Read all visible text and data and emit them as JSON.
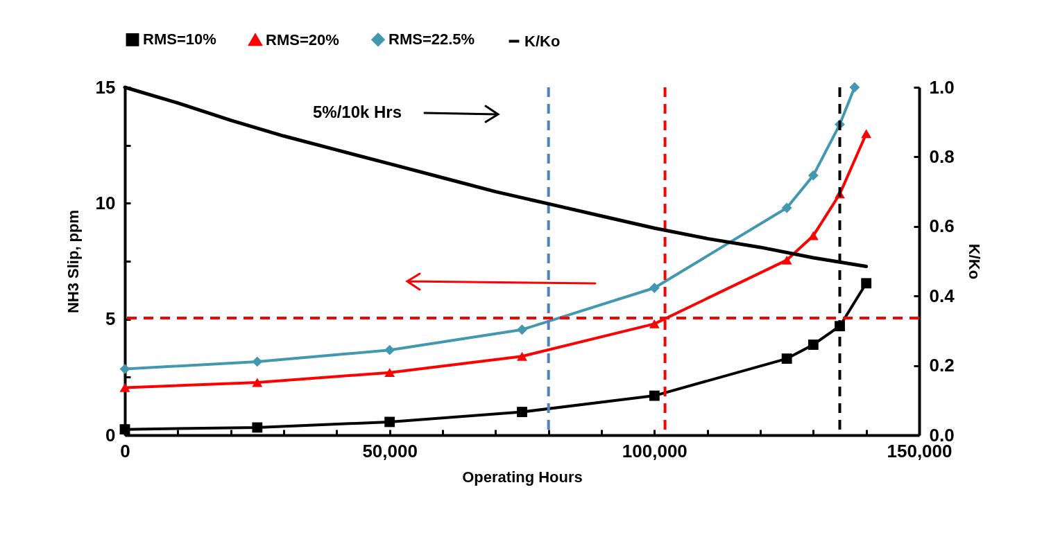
{
  "chart_data": {
    "type": "line",
    "xlabel": "Operating Hours",
    "ylabel": "NH3 Slip, ppm",
    "y2label": "K/Ko",
    "x": [
      0,
      25000,
      50000,
      75000,
      100000,
      125000,
      130000,
      135000,
      140000
    ],
    "series": [
      {
        "name": "RMS=10%",
        "color": "#000000",
        "marker": "square",
        "values": [
          0.25,
          0.33,
          0.57,
          1.0,
          1.7,
          3.3,
          3.9,
          4.7,
          6.55
        ]
      },
      {
        "name": "RMS=20%",
        "color": "#ff0000",
        "marker": "triangle",
        "values": [
          2.05,
          2.27,
          2.7,
          3.4,
          4.8,
          7.55,
          8.6,
          10.4,
          13.0
        ]
      },
      {
        "name": "RMS=22.5%",
        "color": "#4198af",
        "marker": "diamond",
        "x": [
          0,
          25000,
          50000,
          75000,
          100000,
          125000,
          130000,
          135000,
          137800
        ],
        "values": [
          2.85,
          3.17,
          3.67,
          4.55,
          6.35,
          9.8,
          11.2,
          13.4,
          15
        ]
      },
      {
        "name": "K/Ko",
        "color": "#000000",
        "marker": "none",
        "axis": "y2",
        "x": [
          0,
          10000,
          20000,
          30000,
          40000,
          50000,
          60000,
          70000,
          80000,
          90000,
          100000,
          110000,
          120000,
          130000,
          140000
        ],
        "values": [
          1.0,
          0.955,
          0.905,
          0.86,
          0.82,
          0.78,
          0.74,
          0.7,
          0.665,
          0.63,
          0.595,
          0.565,
          0.54,
          0.51,
          0.485
        ]
      }
    ],
    "xlim": [
      0,
      150000
    ],
    "xticks": [
      0,
      {
        "value": 10000,
        "label": null
      },
      {
        "value": 20000,
        "label": null
      },
      {
        "value": 30000,
        "label": null
      },
      {
        "value": 40000,
        "label": null
      },
      {
        "value": 50000,
        "label": "50,000"
      },
      {
        "value": 60000,
        "label": null
      },
      {
        "value": 70000,
        "label": null
      },
      {
        "value": 80000,
        "label": null
      },
      {
        "value": 90000,
        "label": null
      },
      {
        "value": 100000,
        "label": "100,000"
      },
      {
        "value": 110000,
        "label": null
      },
      {
        "value": 120000,
        "label": null
      },
      {
        "value": 130000,
        "label": null
      },
      {
        "value": 140000,
        "label": null
      },
      {
        "value": 150000,
        "label": "150,000"
      }
    ],
    "ylim": [
      0,
      15
    ],
    "yticks": [
      0,
      {
        "value": 2.5,
        "label": null
      },
      5,
      {
        "value": 7.5,
        "label": null
      },
      10,
      {
        "value": 12.5,
        "label": null
      },
      15
    ],
    "y2lim": [
      0,
      1
    ],
    "y2ticks": [
      {
        "value": 0,
        "label": "0.0"
      },
      0.2,
      0.4,
      0.6,
      0.8,
      {
        "value": 1,
        "label": "1.0"
      }
    ],
    "ref_lines": [
      {
        "axis": "x",
        "value": 80000,
        "color": "#4f81bd",
        "line_style": "dashed"
      },
      {
        "axis": "x",
        "value": 102000,
        "color": "#ff0000",
        "line_style": "dashed"
      },
      {
        "axis": "x",
        "value": 135000,
        "color": "#000000",
        "line_style": "dashed"
      },
      {
        "axis": "y",
        "value": 5.05,
        "color": "#ff0000",
        "line_style": "dashed"
      }
    ],
    "annotations": [
      "5%/10k Hrs"
    ],
    "legend": "top",
    "grid": false,
    "line_style": "solid"
  }
}
